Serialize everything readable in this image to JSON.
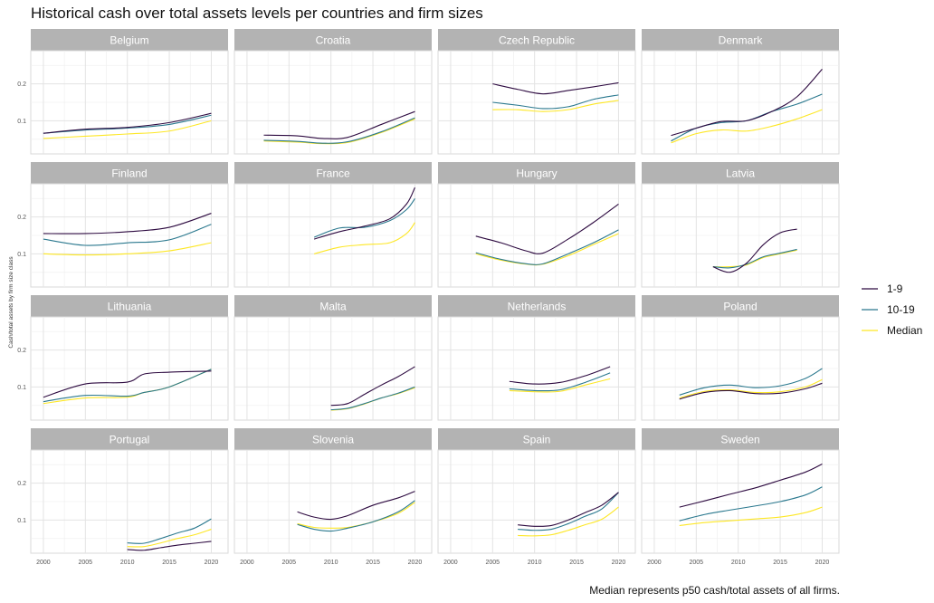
{
  "title": "Historical cash over total assets levels per countries and firm sizes",
  "caption": "Median represents p50 cash/total assets of all firms.",
  "chart_data": {
    "type": "line",
    "layout": "facet-grid-4x4",
    "ylabel": "Cash/total assets by firm size class",
    "xlabel": "",
    "x_ticks": [
      2000,
      2005,
      2010,
      2015,
      2020
    ],
    "y_ticks": [
      0.1,
      0.2
    ],
    "xlim": [
      1998.5,
      2022
    ],
    "ylim": [
      0.01,
      0.29
    ],
    "grid": true,
    "legend_position": "right",
    "series_styles": [
      {
        "name": "1-9",
        "color": "#2d0a40"
      },
      {
        "name": "10-19",
        "color": "#2a788e"
      },
      {
        "name": "Median",
        "color": "#fde725"
      }
    ],
    "panels": [
      {
        "country": "Belgium",
        "series": [
          {
            "name": "1-9",
            "x": [
              2000,
              2005,
              2010,
              2015,
              2020
            ],
            "y": [
              0.066,
              0.077,
              0.082,
              0.095,
              0.12
            ]
          },
          {
            "name": "10-19",
            "x": [
              2000,
              2005,
              2010,
              2015,
              2020
            ],
            "y": [
              0.066,
              0.075,
              0.08,
              0.09,
              0.115
            ]
          },
          {
            "name": "Median",
            "x": [
              2000,
              2005,
              2010,
              2015,
              2020
            ],
            "y": [
              0.052,
              0.058,
              0.064,
              0.072,
              0.1
            ]
          }
        ]
      },
      {
        "country": "Croatia",
        "series": [
          {
            "name": "1-9",
            "x": [
              2002,
              2006,
              2009,
              2012,
              2016,
              2020
            ],
            "y": [
              0.061,
              0.059,
              0.052,
              0.055,
              0.09,
              0.125
            ]
          },
          {
            "name": "10-19",
            "x": [
              2002,
              2006,
              2009,
              2012,
              2016,
              2020
            ],
            "y": [
              0.047,
              0.044,
              0.039,
              0.043,
              0.07,
              0.108
            ]
          },
          {
            "name": "Median",
            "x": [
              2002,
              2006,
              2009,
              2012,
              2016,
              2020
            ],
            "y": [
              0.045,
              0.042,
              0.038,
              0.041,
              0.068,
              0.105
            ]
          }
        ]
      },
      {
        "country": "Czech Republic",
        "series": [
          {
            "name": "1-9",
            "x": [
              2005,
              2008,
              2011,
              2014,
              2017,
              2020
            ],
            "y": [
              0.2,
              0.185,
              0.173,
              0.182,
              0.192,
              0.203
            ]
          },
          {
            "name": "10-19",
            "x": [
              2005,
              2008,
              2011,
              2014,
              2017,
              2020
            ],
            "y": [
              0.15,
              0.142,
              0.133,
              0.138,
              0.158,
              0.17
            ]
          },
          {
            "name": "Median",
            "x": [
              2005,
              2008,
              2011,
              2014,
              2017,
              2020
            ],
            "y": [
              0.13,
              0.13,
              0.125,
              0.13,
              0.145,
              0.155
            ]
          }
        ]
      },
      {
        "country": "Denmark",
        "series": [
          {
            "name": "1-9",
            "x": [
              2002,
              2005,
              2008,
              2011,
              2014,
              2017,
              2020
            ],
            "y": [
              0.06,
              0.08,
              0.098,
              0.1,
              0.125,
              0.165,
              0.24
            ]
          },
          {
            "name": "10-19",
            "x": [
              2002,
              2005,
              2008,
              2011,
              2014,
              2017,
              2020
            ],
            "y": [
              0.045,
              0.08,
              0.095,
              0.1,
              0.125,
              0.145,
              0.172
            ]
          },
          {
            "name": "Median",
            "x": [
              2002,
              2005,
              2008,
              2011,
              2014,
              2017,
              2020
            ],
            "y": [
              0.04,
              0.065,
              0.075,
              0.072,
              0.085,
              0.105,
              0.13
            ]
          }
        ]
      },
      {
        "country": "Finland",
        "series": [
          {
            "name": "1-9",
            "x": [
              2000,
              2005,
              2010,
              2015,
              2020
            ],
            "y": [
              0.155,
              0.155,
              0.16,
              0.172,
              0.21
            ]
          },
          {
            "name": "10-19",
            "x": [
              2000,
              2005,
              2010,
              2015,
              2020
            ],
            "y": [
              0.14,
              0.123,
              0.13,
              0.138,
              0.18
            ]
          },
          {
            "name": "Median",
            "x": [
              2000,
              2005,
              2010,
              2015,
              2020
            ],
            "y": [
              0.1,
              0.097,
              0.1,
              0.108,
              0.13
            ]
          }
        ]
      },
      {
        "country": "France",
        "series": [
          {
            "name": "1-9",
            "x": [
              2008,
              2011,
              2014,
              2017,
              2019,
              2020
            ],
            "y": [
              0.14,
              0.16,
              0.175,
              0.195,
              0.235,
              0.28
            ]
          },
          {
            "name": "10-19",
            "x": [
              2008,
              2011,
              2014,
              2017,
              2019,
              2020
            ],
            "y": [
              0.145,
              0.17,
              0.172,
              0.19,
              0.22,
              0.25
            ]
          },
          {
            "name": "Median",
            "x": [
              2008,
              2011,
              2014,
              2017,
              2019,
              2020
            ],
            "y": [
              0.1,
              0.118,
              0.125,
              0.13,
              0.155,
              0.185
            ]
          }
        ]
      },
      {
        "country": "Hungary",
        "series": [
          {
            "name": "1-9",
            "x": [
              2003,
              2006,
              2009,
              2011,
              2014,
              2017,
              2020
            ],
            "y": [
              0.148,
              0.13,
              0.108,
              0.102,
              0.14,
              0.185,
              0.235
            ]
          },
          {
            "name": "10-19",
            "x": [
              2003,
              2006,
              2009,
              2011,
              2014,
              2017,
              2020
            ],
            "y": [
              0.103,
              0.085,
              0.073,
              0.073,
              0.1,
              0.13,
              0.165
            ]
          },
          {
            "name": "Median",
            "x": [
              2003,
              2006,
              2009,
              2011,
              2014,
              2017,
              2020
            ],
            "y": [
              0.1,
              0.083,
              0.072,
              0.072,
              0.095,
              0.125,
              0.155
            ]
          }
        ]
      },
      {
        "country": "Latvia",
        "series": [
          {
            "name": "1-9",
            "x": [
              2007,
              2009,
              2011,
              2013,
              2015,
              2017
            ],
            "y": [
              0.065,
              0.05,
              0.075,
              0.125,
              0.157,
              0.167
            ]
          },
          {
            "name": "10-19",
            "x": [
              2007,
              2009,
              2011,
              2013,
              2015,
              2017
            ],
            "y": [
              0.065,
              0.062,
              0.072,
              0.092,
              0.102,
              0.112
            ]
          },
          {
            "name": "Median",
            "x": [
              2007,
              2009,
              2011,
              2013,
              2015,
              2017
            ],
            "y": [
              0.065,
              0.065,
              0.07,
              0.09,
              0.1,
              0.11
            ]
          }
        ]
      },
      {
        "country": "Lithuania",
        "series": [
          {
            "name": "1-9",
            "x": [
              2000,
              2005,
              2010,
              2012,
              2015,
              2020
            ],
            "y": [
              0.072,
              0.108,
              0.113,
              0.135,
              0.14,
              0.143
            ]
          },
          {
            "name": "10-19",
            "x": [
              2000,
              2005,
              2010,
              2012,
              2015,
              2020
            ],
            "y": [
              0.06,
              0.077,
              0.075,
              0.085,
              0.1,
              0.148
            ]
          },
          {
            "name": "Median",
            "x": [
              2000,
              2005,
              2010,
              2012,
              2015,
              2020
            ],
            "y": [
              0.055,
              0.07,
              0.072,
              0.085,
              0.1,
              0.148
            ]
          }
        ]
      },
      {
        "country": "Malta",
        "series": [
          {
            "name": "1-9",
            "x": [
              2010,
              2012,
              2014,
              2016,
              2018,
              2020
            ],
            "y": [
              0.05,
              0.055,
              0.08,
              0.105,
              0.128,
              0.155
            ]
          },
          {
            "name": "10-19",
            "x": [
              2010,
              2012,
              2014,
              2016,
              2018,
              2020
            ],
            "y": [
              0.038,
              0.042,
              0.055,
              0.07,
              0.083,
              0.1
            ]
          },
          {
            "name": "Median",
            "x": [
              2010,
              2012,
              2014,
              2016,
              2018,
              2020
            ],
            "y": [
              0.037,
              0.041,
              0.054,
              0.07,
              0.082,
              0.098
            ]
          }
        ]
      },
      {
        "country": "Netherlands",
        "series": [
          {
            "name": "1-9",
            "x": [
              2007,
              2010,
              2013,
              2016,
              2019
            ],
            "y": [
              0.115,
              0.108,
              0.112,
              0.13,
              0.155
            ]
          },
          {
            "name": "10-19",
            "x": [
              2007,
              2010,
              2013,
              2016,
              2019
            ],
            "y": [
              0.095,
              0.09,
              0.092,
              0.112,
              0.138
            ]
          },
          {
            "name": "Median",
            "x": [
              2007,
              2010,
              2013,
              2016,
              2019
            ],
            "y": [
              0.09,
              0.087,
              0.088,
              0.105,
              0.122
            ]
          }
        ]
      },
      {
        "country": "Poland",
        "series": [
          {
            "name": "1-9",
            "x": [
              2003,
              2006,
              2009,
              2012,
              2015,
              2018,
              2020
            ],
            "y": [
              0.067,
              0.085,
              0.09,
              0.082,
              0.083,
              0.095,
              0.11
            ]
          },
          {
            "name": "10-19",
            "x": [
              2003,
              2006,
              2009,
              2012,
              2015,
              2018,
              2020
            ],
            "y": [
              0.078,
              0.098,
              0.105,
              0.098,
              0.103,
              0.123,
              0.15
            ]
          },
          {
            "name": "Median",
            "x": [
              2003,
              2006,
              2009,
              2012,
              2015,
              2018,
              2020
            ],
            "y": [
              0.07,
              0.088,
              0.092,
              0.085,
              0.087,
              0.1,
              0.12
            ]
          }
        ]
      },
      {
        "country": "Portugal",
        "series": [
          {
            "name": "1-9",
            "x": [
              2010,
              2012,
              2014,
              2016,
              2018,
              2020
            ],
            "y": [
              0.02,
              0.018,
              0.025,
              0.032,
              0.037,
              0.042
            ]
          },
          {
            "name": "10-19",
            "x": [
              2010,
              2012,
              2014,
              2016,
              2018,
              2020
            ],
            "y": [
              0.038,
              0.037,
              0.05,
              0.065,
              0.078,
              0.103
            ]
          },
          {
            "name": "Median",
            "x": [
              2010,
              2012,
              2014,
              2016,
              2018,
              2020
            ],
            "y": [
              0.028,
              0.028,
              0.038,
              0.05,
              0.06,
              0.075
            ]
          }
        ]
      },
      {
        "country": "Slovenia",
        "series": [
          {
            "name": "1-9",
            "x": [
              2006,
              2008,
              2010,
              2012,
              2015,
              2018,
              2020
            ],
            "y": [
              0.122,
              0.108,
              0.102,
              0.112,
              0.14,
              0.16,
              0.178
            ]
          },
          {
            "name": "10-19",
            "x": [
              2006,
              2008,
              2010,
              2012,
              2015,
              2018,
              2020
            ],
            "y": [
              0.088,
              0.075,
              0.07,
              0.078,
              0.095,
              0.122,
              0.153
            ]
          },
          {
            "name": "Median",
            "x": [
              2006,
              2008,
              2010,
              2012,
              2015,
              2018,
              2020
            ],
            "y": [
              0.09,
              0.08,
              0.078,
              0.08,
              0.095,
              0.118,
              0.148
            ]
          }
        ]
      },
      {
        "country": "Spain",
        "series": [
          {
            "name": "1-9",
            "x": [
              2008,
              2010,
              2012,
              2014,
              2016,
              2018,
              2020
            ],
            "y": [
              0.087,
              0.083,
              0.085,
              0.1,
              0.12,
              0.14,
              0.175
            ]
          },
          {
            "name": "10-19",
            "x": [
              2008,
              2010,
              2012,
              2014,
              2016,
              2018,
              2020
            ],
            "y": [
              0.075,
              0.072,
              0.075,
              0.09,
              0.11,
              0.13,
              0.175
            ]
          },
          {
            "name": "Median",
            "x": [
              2008,
              2010,
              2012,
              2014,
              2016,
              2018,
              2020
            ],
            "y": [
              0.058,
              0.057,
              0.06,
              0.072,
              0.087,
              0.102,
              0.135
            ]
          }
        ]
      },
      {
        "country": "Sweden",
        "series": [
          {
            "name": "1-9",
            "x": [
              2003,
              2006,
              2009,
              2012,
              2015,
              2018,
              2020
            ],
            "y": [
              0.135,
              0.152,
              0.17,
              0.187,
              0.208,
              0.23,
              0.252
            ]
          },
          {
            "name": "10-19",
            "x": [
              2003,
              2006,
              2009,
              2012,
              2015,
              2018,
              2020
            ],
            "y": [
              0.098,
              0.115,
              0.127,
              0.138,
              0.15,
              0.168,
              0.19
            ]
          },
          {
            "name": "Median",
            "x": [
              2003,
              2006,
              2009,
              2012,
              2015,
              2018,
              2020
            ],
            "y": [
              0.085,
              0.093,
              0.098,
              0.103,
              0.108,
              0.12,
              0.135
            ]
          }
        ]
      }
    ]
  }
}
